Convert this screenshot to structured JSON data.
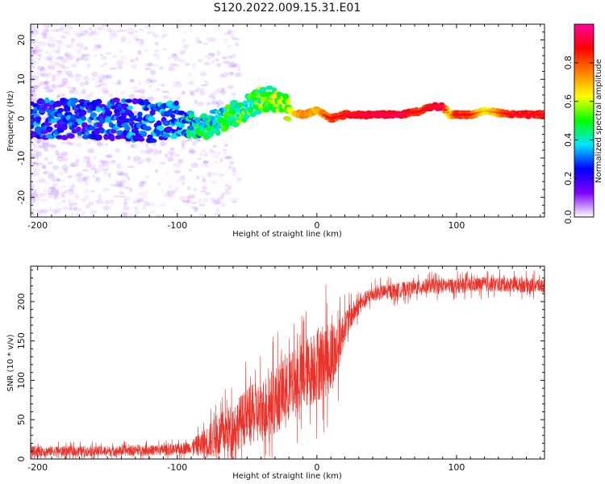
{
  "figure": {
    "title": "S120.2022.009.15.31.E01"
  },
  "chart_data": [
    {
      "type": "heatmap",
      "name": "spectrogram",
      "xlabel": "Height of straight line (km)",
      "ylabel": "Frequency (Hz)",
      "xlim": [
        -205,
        163
      ],
      "ylim": [
        -25,
        24
      ],
      "xticks": [
        -200,
        -100,
        0,
        100
      ],
      "xtick_labels": [
        "-200",
        "-100",
        "0",
        "100"
      ],
      "yticks": [
        -20,
        -10,
        0,
        10,
        20
      ],
      "ytick_labels": [
        "-20",
        "-10",
        "0",
        "10",
        "20"
      ],
      "colorbar": {
        "label": "Normalized spectral amplitude",
        "range": [
          0,
          1
        ],
        "ticks": [
          0.0,
          0.2,
          0.4,
          0.6,
          0.8
        ],
        "tick_labels": [
          "0.0",
          "0.2",
          "0.4",
          "0.6",
          "0.8"
        ],
        "colors": [
          "#ffffff",
          "#8000ff",
          "#0000ff",
          "#00e5ff",
          "#00ff00",
          "#ffff00",
          "#ff8000",
          "#ff0000",
          "#ff00a0"
        ]
      },
      "ridge": {
        "x": [
          -205,
          -150,
          -100,
          -80,
          -60,
          -40,
          -30,
          -20,
          -10,
          0,
          10,
          20,
          40,
          60,
          75,
          80,
          90,
          95,
          100,
          110,
          120,
          140,
          163
        ],
        "y": [
          0,
          0,
          -1,
          -2,
          1,
          5,
          5,
          2,
          1,
          2,
          0,
          1,
          1,
          1,
          2,
          3,
          3,
          1,
          1,
          1,
          2,
          1,
          1
        ],
        "amplitude": [
          0.25,
          0.25,
          0.3,
          0.4,
          0.45,
          0.5,
          0.55,
          0.6,
          0.75,
          0.7,
          0.8,
          0.85,
          0.9,
          0.9,
          0.8,
          0.85,
          0.9,
          0.6,
          0.85,
          0.8,
          0.6,
          0.85,
          0.85
        ]
      }
    },
    {
      "type": "line",
      "name": "snr",
      "xlabel": "Height of straight line (km)",
      "ylabel": "SNR (10 * v/v)",
      "xlim": [
        -205,
        163
      ],
      "ylim": [
        0,
        245
      ],
      "xticks": [
        -200,
        -100,
        0,
        100
      ],
      "xtick_labels": [
        "-200",
        "-100",
        "0",
        "100"
      ],
      "yticks": [
        0,
        50,
        100,
        150,
        200
      ],
      "ytick_labels": [
        "0",
        "50",
        "100",
        "150",
        "200"
      ],
      "color": "#e8322a",
      "envelope": {
        "x": [
          -205,
          -150,
          -100,
          -90,
          -80,
          -70,
          -60,
          -50,
          -40,
          -30,
          -20,
          -10,
          0,
          10,
          15,
          20,
          30,
          40,
          60,
          80,
          100,
          120,
          140,
          163
        ],
        "mean": [
          10,
          10,
          12,
          15,
          20,
          30,
          40,
          55,
          60,
          75,
          90,
          105,
          120,
          130,
          140,
          170,
          195,
          210,
          215,
          220,
          220,
          222,
          222,
          220
        ],
        "spread": [
          8,
          8,
          9,
          10,
          25,
          35,
          40,
          45,
          50,
          55,
          55,
          55,
          60,
          60,
          45,
          25,
          15,
          12,
          12,
          12,
          12,
          12,
          12,
          12
        ]
      }
    }
  ]
}
